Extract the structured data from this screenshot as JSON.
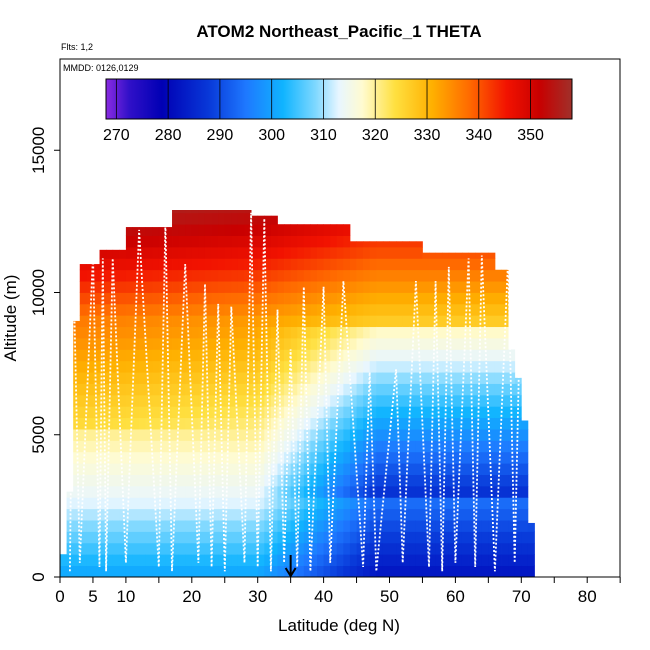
{
  "chart_data": {
    "type": "heatmap",
    "title": "ATOM2 Northeast_Pacific_1 THETA",
    "annotations": {
      "flights": "Flts: 1,2",
      "dates": "MMDD: 0126,0129"
    },
    "xlabel": "Latitude (deg N)",
    "ylabel": "Altitude (m)",
    "xlim": [
      0,
      85
    ],
    "ylim": [
      0,
      18000
    ],
    "xticks": [
      0,
      5,
      10,
      20,
      30,
      40,
      50,
      60,
      70,
      80
    ],
    "yticks": [
      0,
      5000,
      10000,
      15000
    ],
    "colorbar": {
      "variable": "THETA",
      "range": [
        268,
        358
      ],
      "tick_values": [
        270,
        280,
        290,
        300,
        310,
        320,
        330,
        340,
        350
      ],
      "placement": "top"
    },
    "marker": {
      "symbol": "down-arrow",
      "latitude": 35
    },
    "flight_track_latitudes": [
      1.5,
      2,
      3,
      5,
      6,
      6.5,
      7,
      8,
      10,
      12,
      15,
      16,
      17,
      19,
      21,
      22,
      23,
      24,
      25,
      26,
      28,
      29,
      30,
      31,
      32,
      33,
      34,
      35,
      36,
      37,
      38,
      40,
      41,
      43,
      46,
      47,
      48,
      51,
      52,
      54,
      56,
      57,
      58,
      59,
      60,
      62,
      63,
      64,
      66,
      68,
      69,
      70
    ]
  }
}
